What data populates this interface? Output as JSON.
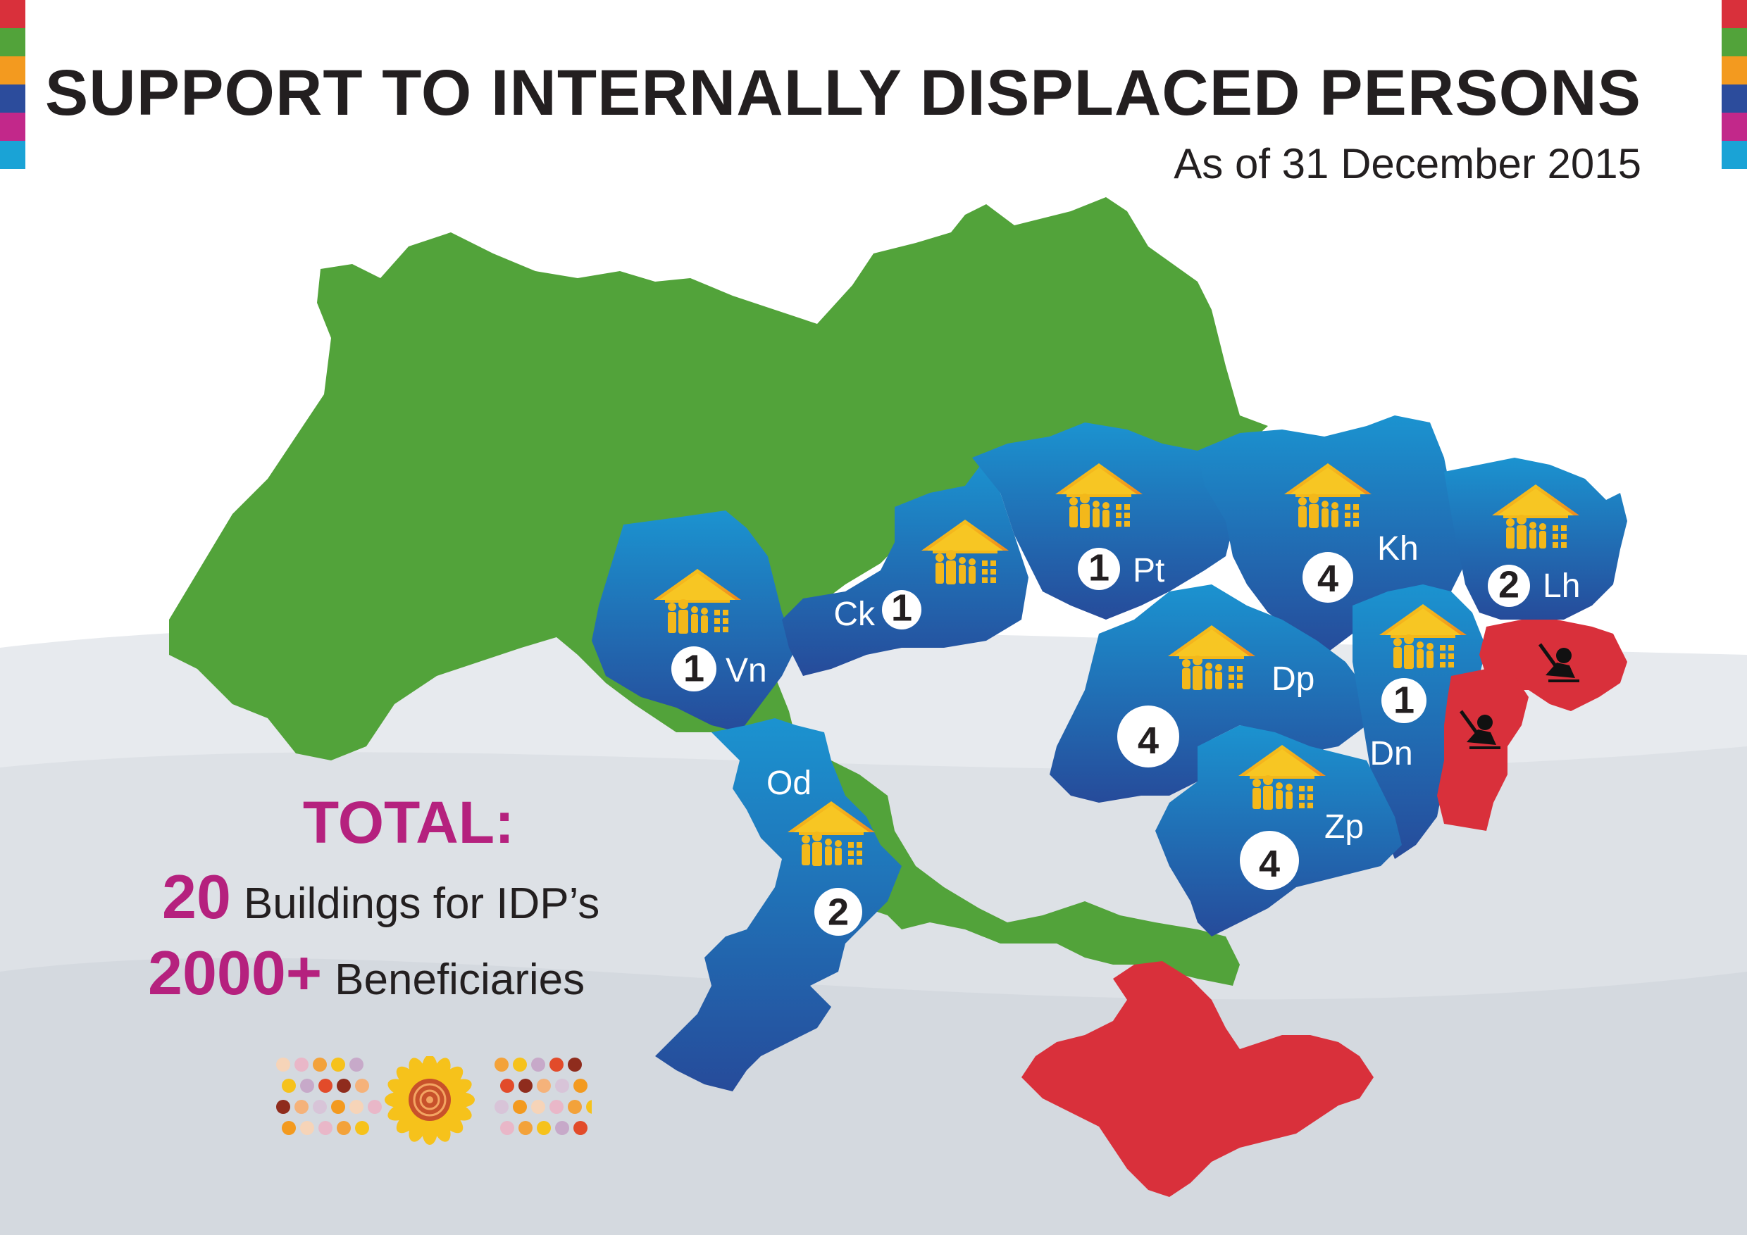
{
  "header": {
    "title": "SUPPORT TO INTERNALLY DISPLACED PERSONS",
    "subtitle": "As of 31 December 2015"
  },
  "colors": {
    "green": "#52a33a",
    "blue": "#1f64ad",
    "red": "#d9303b",
    "magenta": "#b5217e",
    "icon_yellow": "#f3b81a"
  },
  "icons": {
    "building": "idp-building-icon",
    "conflict": "armed-conflict-icon"
  },
  "regions": [
    {
      "code": "Vn",
      "count": "1"
    },
    {
      "code": "Ck",
      "count": "1"
    },
    {
      "code": "Pt",
      "count": "1"
    },
    {
      "code": "Kh",
      "count": "4"
    },
    {
      "code": "Lh",
      "count": "2"
    },
    {
      "code": "Dp",
      "count": "4"
    },
    {
      "code": "Dn",
      "count": "1"
    },
    {
      "code": "Zp",
      "count": "4"
    },
    {
      "code": "Od",
      "count": "2"
    }
  ],
  "totals": {
    "label": "TOTAL:",
    "buildings_value": "20",
    "buildings_label": "Buildings for IDP’s",
    "beneficiaries_value": "2000+",
    "beneficiaries_label": "Beneficiaries"
  }
}
